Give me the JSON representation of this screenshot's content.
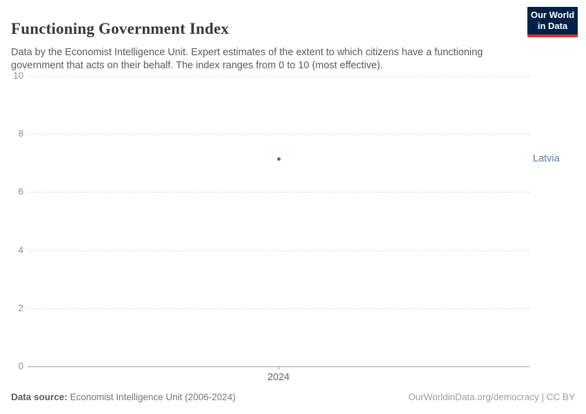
{
  "header": {
    "title": "Functioning Government Index",
    "subtitle": "Data by the Economist Intelligence Unit. Expert estimates of the extent to which citizens have a functioning government that acts on their behalf. The index ranges from 0 to 10 (most effective).",
    "logo": {
      "line1": "Our World",
      "line2": "in Data",
      "bg_color": "#002147",
      "accent_color": "#dc2e32"
    }
  },
  "footer": {
    "source_label": "Data source:",
    "source_text": " Economist Intelligence Unit (2006-2024)",
    "link_text": "OurWorldinData.org/democracy | CC BY"
  },
  "chart_data": {
    "type": "scatter",
    "title": "Functioning Government Index",
    "x": [
      2024
    ],
    "xtick_labels": [
      "2024"
    ],
    "series": [
      {
        "name": "Latvia",
        "values": [
          7.14
        ],
        "color": "#4c6a9c",
        "label_color": "#5b7da5"
      }
    ],
    "ylim": [
      0,
      10
    ],
    "yticks": [
      0,
      2,
      4,
      6,
      8,
      10
    ],
    "xlabel": "",
    "ylabel": "",
    "grid": "horizontal-dashed",
    "legend_position": "entity-label-right"
  }
}
